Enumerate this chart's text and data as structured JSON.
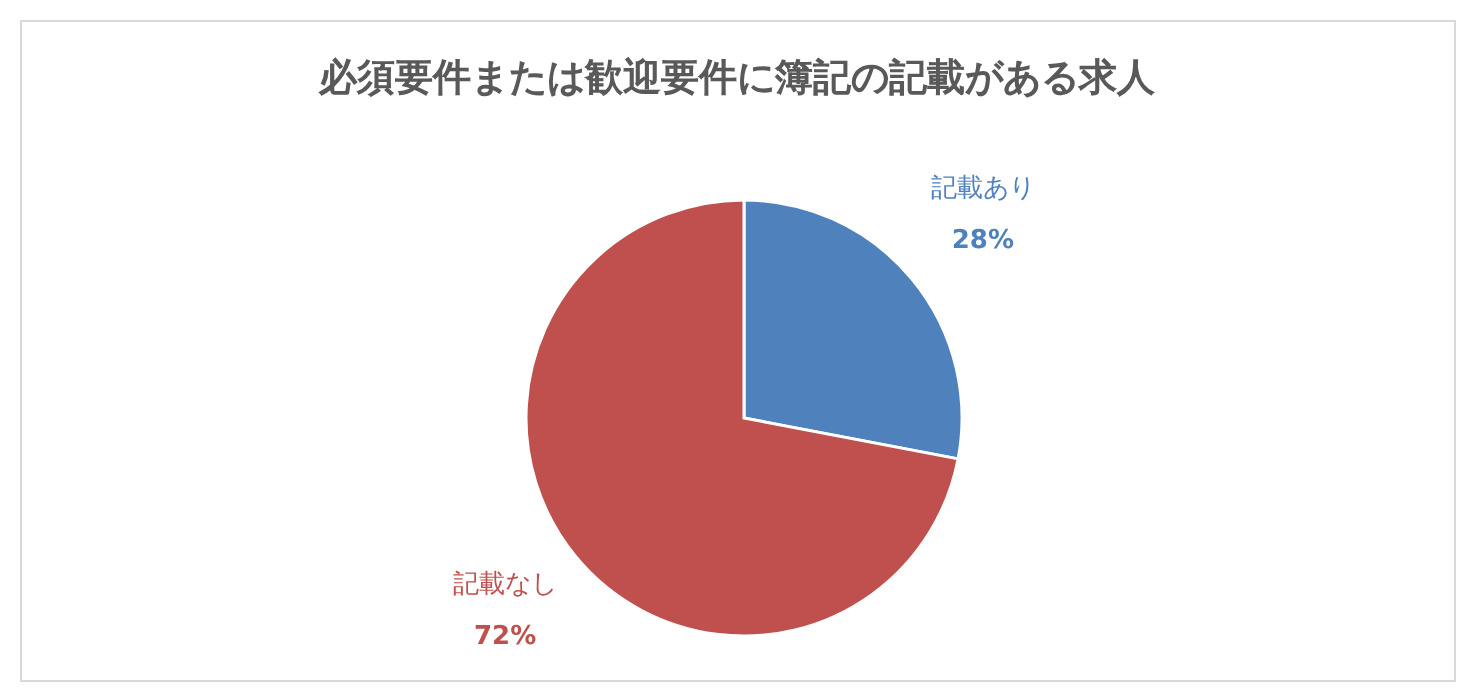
{
  "chart_data": {
    "type": "pie",
    "title": "必須要件または歓迎要件に簿記の記載がある求人",
    "categories": [
      "記載あり",
      "記載なし"
    ],
    "values": [
      28,
      72
    ],
    "colors": [
      "#4f81bd",
      "#c0504d"
    ],
    "value_labels": [
      "28%",
      "72%"
    ],
    "legend": false
  }
}
